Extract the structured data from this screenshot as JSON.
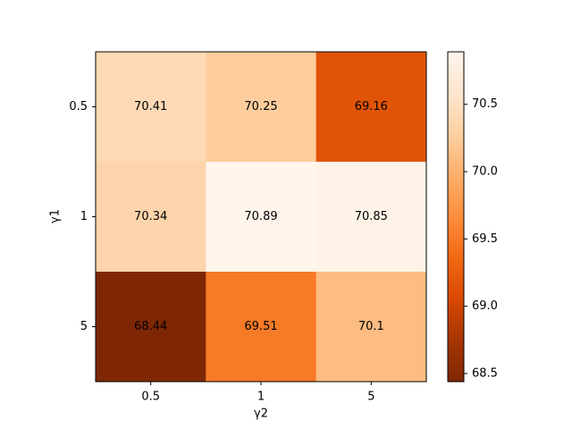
{
  "chart_data": {
    "type": "heatmap",
    "x_label": "γ2",
    "y_label": "γ1",
    "x_categories": [
      "0.5",
      "1",
      "5"
    ],
    "y_categories": [
      "0.5",
      "1",
      "5"
    ],
    "values": [
      [
        70.41,
        70.25,
        69.16
      ],
      [
        70.34,
        70.89,
        70.85
      ],
      [
        68.44,
        69.51,
        70.1
      ]
    ],
    "colormap": "Oranges_r",
    "zlim": [
      68.44,
      70.89
    ],
    "zticks": [
      68.5,
      {
        "value": 69,
        "label": "69.0"
      },
      69.5,
      {
        "value": 70,
        "label": "70.0"
      },
      70.5
    ]
  }
}
